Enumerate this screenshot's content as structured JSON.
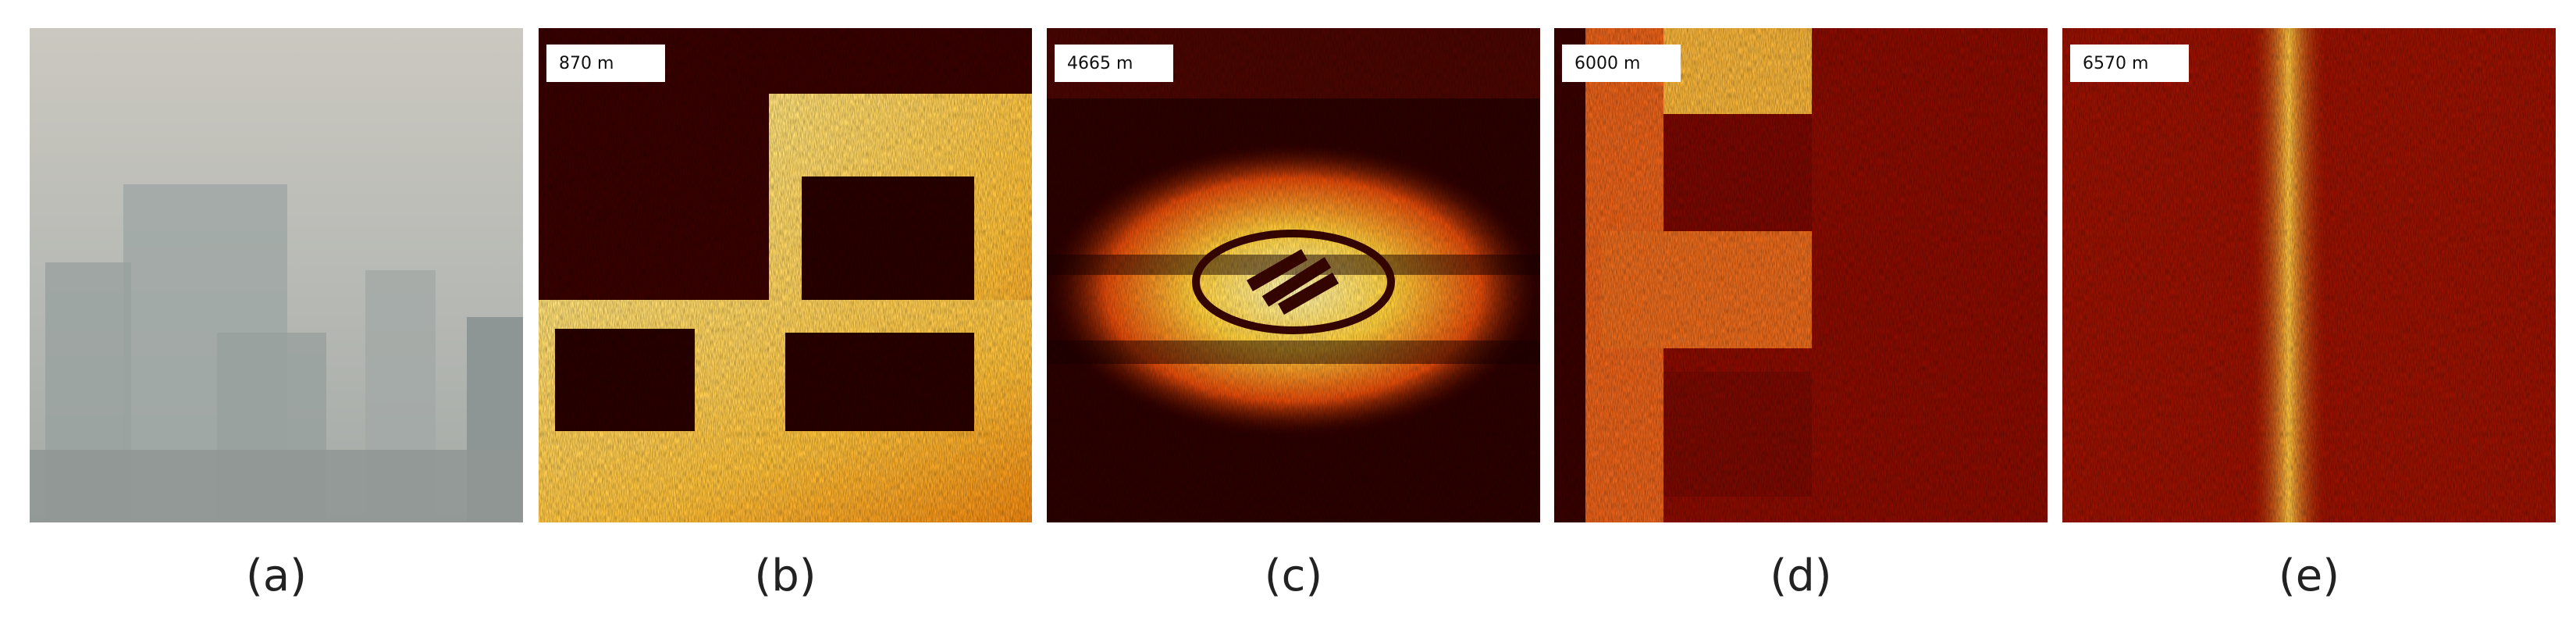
{
  "panels": [
    {
      "label": "(a)"
    },
    {
      "label": "(b)",
      "distance": "870 m"
    },
    {
      "label": "(c)",
      "distance": "4665 m"
    },
    {
      "label": "(d)",
      "distance": "6000 m"
    },
    {
      "label": "(e)",
      "distance": "6570 m"
    }
  ]
}
